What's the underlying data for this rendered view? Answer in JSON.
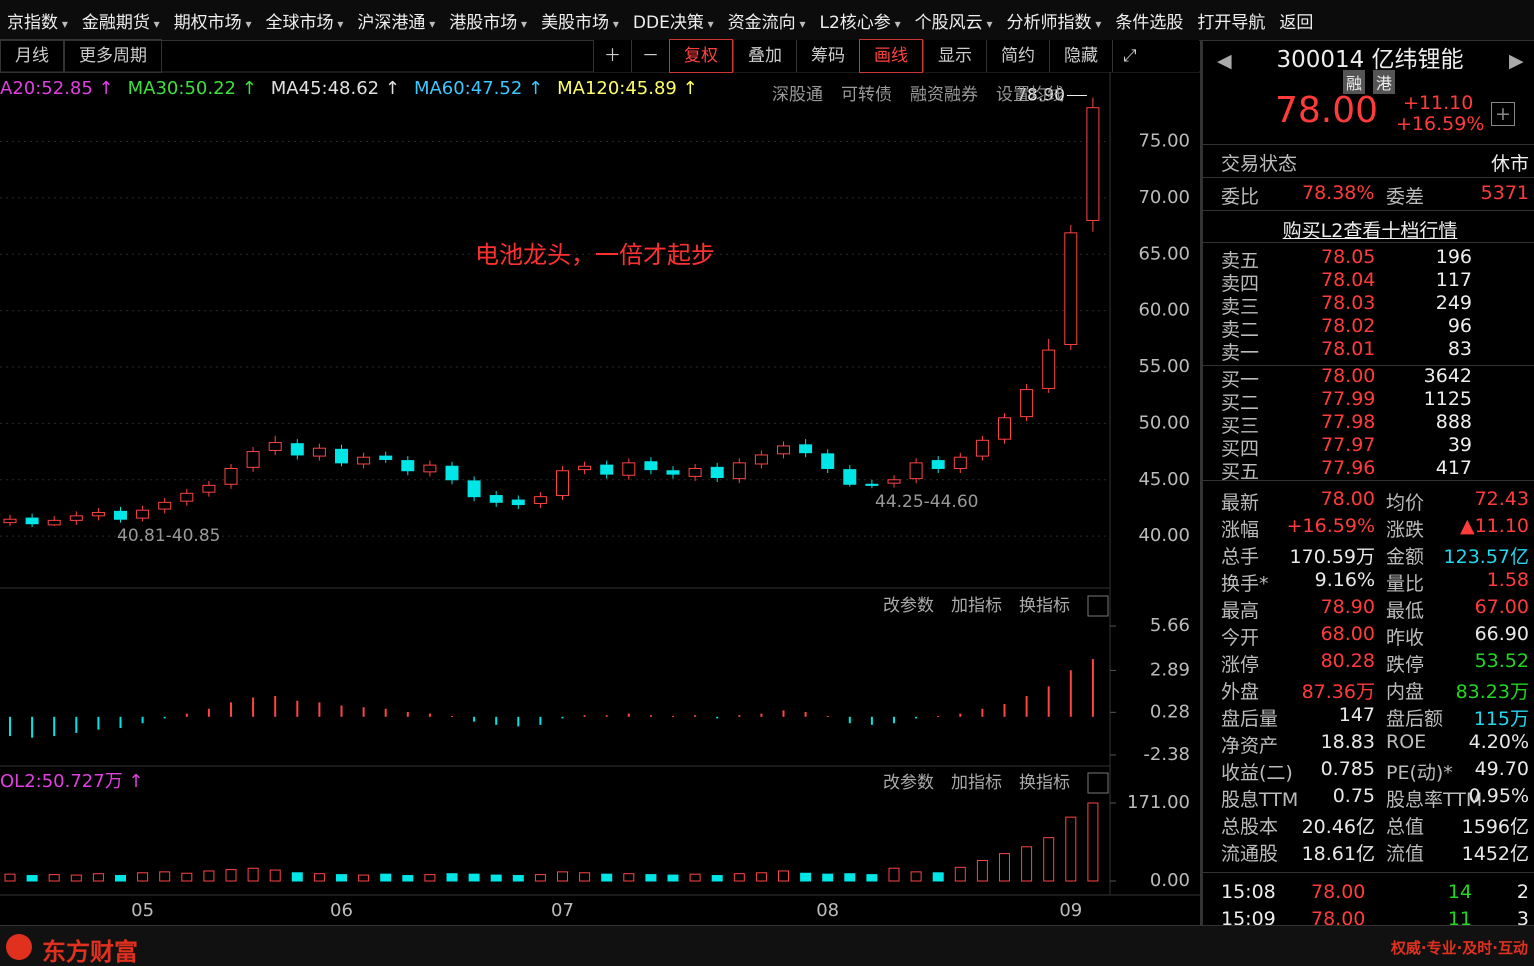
{
  "menu": [
    "京指数",
    "金融期货",
    "期权市场",
    "全球市场",
    "沪深港通",
    "港股市场",
    "美股市场",
    "DDE决策",
    "资金流向",
    "L2核心参",
    "个股风云",
    "分析师指数",
    "条件选股",
    "打开导航",
    "返回"
  ],
  "toolbar": {
    "left": [
      "月线",
      "更多周期"
    ],
    "right": [
      "复权",
      "叠加",
      "筹码",
      "画线",
      "显示",
      "简约",
      "隐藏"
    ]
  },
  "ma_legend": [
    {
      "label": "A20:52.85 ↑",
      "color": "#e040e0"
    },
    {
      "label": "MA30:50.22 ↑",
      "color": "#3ee03e"
    },
    {
      "label": "MA45:48.62 ↑",
      "color": "#e0e0e0"
    },
    {
      "label": "MA60:47.52 ↑",
      "color": "#3cc8ff"
    },
    {
      "label": "MA120:45.89 ↑",
      "color": "#ffff66"
    }
  ],
  "chart_links": [
    "深股通",
    "可转债",
    "融资融券",
    "设置均线"
  ],
  "panel_buttons": [
    "改参数",
    "加指标",
    "换指标"
  ],
  "chart_data": [
    {
      "type": "candlestick",
      "categories": [
        null,
        null,
        null,
        null,
        null,
        null,
        "05",
        null,
        null,
        null,
        null,
        null,
        null,
        null,
        null,
        "06",
        null,
        null,
        null,
        null,
        null,
        null,
        null,
        null,
        null,
        "07",
        null,
        null,
        null,
        null,
        null,
        null,
        null,
        null,
        null,
        null,
        null,
        "08",
        null,
        null,
        null,
        null,
        null,
        null,
        null,
        null,
        null,
        null,
        "09",
        null
      ],
      "open": [
        41.2,
        41.6,
        41.0,
        41.4,
        41.8,
        42.2,
        41.6,
        42.4,
        43.1,
        43.9,
        44.6,
        46.1,
        47.6,
        48.2,
        47.1,
        47.7,
        46.4,
        47.1,
        46.7,
        45.7,
        46.2,
        44.9,
        43.6,
        43.2,
        42.9,
        43.6,
        45.9,
        46.3,
        45.4,
        46.6,
        45.8,
        45.3,
        46.1,
        45.1,
        46.4,
        47.3,
        48.1,
        47.3,
        45.9,
        44.6,
        44.7,
        45.1,
        46.7,
        46.0,
        47.1,
        48.6,
        50.6,
        53.1,
        57.0,
        68.0
      ],
      "high": [
        41.9,
        42.0,
        41.8,
        42.2,
        42.5,
        42.6,
        42.7,
        43.4,
        44.2,
        44.9,
        46.4,
        47.9,
        48.9,
        48.6,
        48.2,
        48.1,
        47.4,
        47.5,
        47.1,
        46.7,
        46.6,
        45.3,
        44.0,
        43.6,
        43.9,
        46.2,
        46.6,
        46.7,
        46.9,
        47.0,
        46.2,
        46.4,
        46.5,
        46.9,
        47.6,
        48.4,
        48.6,
        47.7,
        46.3,
        45.0,
        45.4,
        46.9,
        47.1,
        47.4,
        48.9,
        50.9,
        53.5,
        57.5,
        67.6,
        78.9
      ],
      "low": [
        40.9,
        40.81,
        40.9,
        41.0,
        41.4,
        41.2,
        41.3,
        42.0,
        42.7,
        43.5,
        44.2,
        45.7,
        47.2,
        46.8,
        46.7,
        46.2,
        46.0,
        46.5,
        45.4,
        45.3,
        44.6,
        43.1,
        42.6,
        42.4,
        42.5,
        43.2,
        45.5,
        45.1,
        45.0,
        45.5,
        45.1,
        44.9,
        44.8,
        44.7,
        46.0,
        46.9,
        47.0,
        45.6,
        44.4,
        44.25,
        44.3,
        44.7,
        45.6,
        45.6,
        46.7,
        48.2,
        50.2,
        52.7,
        56.5,
        67.0
      ],
      "close": [
        41.5,
        41.1,
        41.4,
        41.8,
        42.1,
        41.5,
        42.3,
        43.0,
        43.8,
        44.5,
        46.0,
        47.5,
        48.3,
        47.2,
        47.8,
        46.5,
        47.0,
        46.8,
        45.8,
        46.3,
        45.0,
        43.5,
        43.0,
        42.8,
        43.5,
        45.8,
        46.2,
        45.5,
        46.5,
        45.9,
        45.5,
        46.0,
        45.2,
        46.5,
        47.2,
        48.0,
        47.4,
        46.0,
        44.6,
        44.5,
        45.0,
        46.5,
        46.0,
        47.0,
        48.5,
        50.5,
        53.0,
        56.5,
        66.9,
        78.0
      ],
      "up_color": "#ff4444",
      "down_color": "#00e5e5",
      "ylim": [
        35.4,
        80.9
      ],
      "yticks": [
        {
          "value": 40,
          "label": "40.00"
        },
        {
          "value": 45,
          "label": "45.00"
        },
        {
          "value": 50,
          "label": "50.00"
        },
        {
          "value": 55,
          "label": "55.00"
        },
        {
          "value": 60,
          "label": "60.00"
        },
        {
          "value": 65,
          "label": "65.00"
        },
        {
          "value": 70,
          "label": "70.00"
        },
        {
          "value": 75,
          "label": "75.00"
        }
      ],
      "grid": true,
      "high_label": "78.90",
      "low_labels": [
        "40.81-40.85",
        "44.25-44.60"
      ],
      "annotation": "电池龙头，一倍才起步"
    },
    {
      "type": "bar",
      "values": [
        -1.2,
        -1.3,
        -1.2,
        -1.0,
        -0.8,
        -0.7,
        -0.4,
        -0.1,
        0.2,
        0.5,
        0.9,
        1.2,
        1.3,
        1.0,
        0.9,
        0.7,
        0.6,
        0.5,
        0.3,
        0.2,
        0.05,
        -0.3,
        -0.5,
        -0.6,
        -0.5,
        -0.1,
        0.1,
        0.1,
        0.2,
        0.1,
        0.05,
        0.1,
        -0.1,
        0.1,
        0.2,
        0.4,
        0.3,
        0.05,
        -0.4,
        -0.5,
        -0.4,
        -0.1,
        0.05,
        0.2,
        0.5,
        0.8,
        1.3,
        1.9,
        2.9,
        3.6
      ],
      "up_color": "#ff4444",
      "down_color": "#00e5e5",
      "ylim": [
        -2.38,
        5.66
      ],
      "yticks": [
        -2.38,
        0.28,
        2.89,
        5.66
      ]
    },
    {
      "type": "volume",
      "title": "OL2:50.727万 ↑",
      "title_color": "#e040e0",
      "values": [
        15,
        12,
        14,
        13,
        16,
        12,
        18,
        20,
        17,
        22,
        25,
        28,
        24,
        18,
        16,
        14,
        13,
        15,
        12,
        14,
        16,
        15,
        13,
        12,
        14,
        20,
        18,
        15,
        16,
        14,
        13,
        15,
        12,
        16,
        18,
        22,
        17,
        15,
        16,
        14,
        28,
        20,
        18,
        30,
        45,
        60,
        75,
        95,
        140,
        171
      ],
      "ylim": [
        0,
        171
      ],
      "yticks": [
        {
          "value": 0,
          "label": "0.00"
        },
        {
          "value": 171,
          "label": "171.00"
        }
      ]
    }
  ],
  "stock": {
    "code_name": "300014 亿纬锂能",
    "tags": [
      "融",
      "港"
    ],
    "price": "78.00",
    "change": "+11.10",
    "change_pct": "+16.59%"
  },
  "status": {
    "label": "交易状态",
    "value": "休市"
  },
  "ratio": {
    "l1": "委比",
    "v1": "78.38%",
    "l2": "委差",
    "v2": "5371"
  },
  "l2_link": "购买L2查看十档行情",
  "asks": [
    [
      "卖五",
      "78.05",
      "196"
    ],
    [
      "卖四",
      "78.04",
      "117"
    ],
    [
      "卖三",
      "78.03",
      "249"
    ],
    [
      "卖二",
      "78.02",
      "96"
    ],
    [
      "卖一",
      "78.01",
      "83"
    ]
  ],
  "bids": [
    [
      "买一",
      "78.00",
      "3642"
    ],
    [
      "买二",
      "77.99",
      "1125"
    ],
    [
      "买三",
      "77.98",
      "888"
    ],
    [
      "买四",
      "77.97",
      "39"
    ],
    [
      "买五",
      "77.96",
      "417"
    ]
  ],
  "stats": [
    {
      "l1": "最新",
      "v1": "78.00",
      "c1": "#ff3b3b",
      "l2": "均价",
      "v2": "72.43",
      "c2": "#ff3b3b"
    },
    {
      "l1": "涨幅",
      "v1": "+16.59%",
      "c1": "#ff3b3b",
      "l2": "涨跌",
      "v2": "▲11.10",
      "c2": "#ff3b3b"
    },
    {
      "l1": "总手",
      "v1": "170.59万",
      "c1": "#e8e8e8",
      "l2": "金额",
      "v2": "123.57亿",
      "c2": "#22d8f0"
    },
    {
      "l1": "换手*",
      "v1": "9.16%",
      "c1": "#e8e8e8",
      "l2": "量比",
      "v2": "1.58",
      "c2": "#ff3b3b"
    },
    {
      "l1": "最高",
      "v1": "78.90",
      "c1": "#ff3b3b",
      "l2": "最低",
      "v2": "67.00",
      "c2": "#ff3b3b"
    },
    {
      "l1": "今开",
      "v1": "68.00",
      "c1": "#ff3b3b",
      "l2": "昨收",
      "v2": "66.90",
      "c2": "#e8e8e8"
    },
    {
      "l1": "涨停",
      "v1": "80.28",
      "c1": "#ff3b3b",
      "l2": "跌停",
      "v2": "53.52",
      "c2": "#22d622"
    },
    {
      "l1": "外盘",
      "v1": "87.36万",
      "c1": "#ff3b3b",
      "l2": "内盘",
      "v2": "83.23万",
      "c2": "#22d622"
    },
    {
      "l1": "盘后量",
      "v1": "147",
      "c1": "#e8e8e8",
      "l2": "盘后额",
      "v2": "115万",
      "c2": "#22d8f0"
    },
    {
      "l1": "净资产",
      "v1": "18.83",
      "c1": "#e8e8e8",
      "l2": "ROE",
      "v2": "4.20%",
      "c2": "#e8e8e8"
    },
    {
      "l1": "收益(二)",
      "v1": "0.785",
      "c1": "#e8e8e8",
      "l2": "PE(动)*",
      "v2": "49.70",
      "c2": "#e8e8e8"
    },
    {
      "l1": "股息TTM",
      "v1": "0.75",
      "c1": "#e8e8e8",
      "l2": "股息率TTM",
      "v2": "0.95%",
      "c2": "#e8e8e8"
    },
    {
      "l1": "总股本",
      "v1": "20.46亿",
      "c1": "#e8e8e8",
      "l2": "总值",
      "v2": "1596亿",
      "c2": "#e8e8e8"
    },
    {
      "l1": "流通股",
      "v1": "18.61亿",
      "c1": "#e8e8e8",
      "l2": "流值",
      "v2": "1452亿",
      "c2": "#e8e8e8"
    }
  ],
  "trades": [
    [
      "15:08",
      "78.00",
      "14",
      "2"
    ],
    [
      "15:09",
      "78.00",
      "11",
      "3"
    ]
  ],
  "footer": {
    "logo": "东方财富",
    "slogan": "权威·专业·及时·互动"
  }
}
